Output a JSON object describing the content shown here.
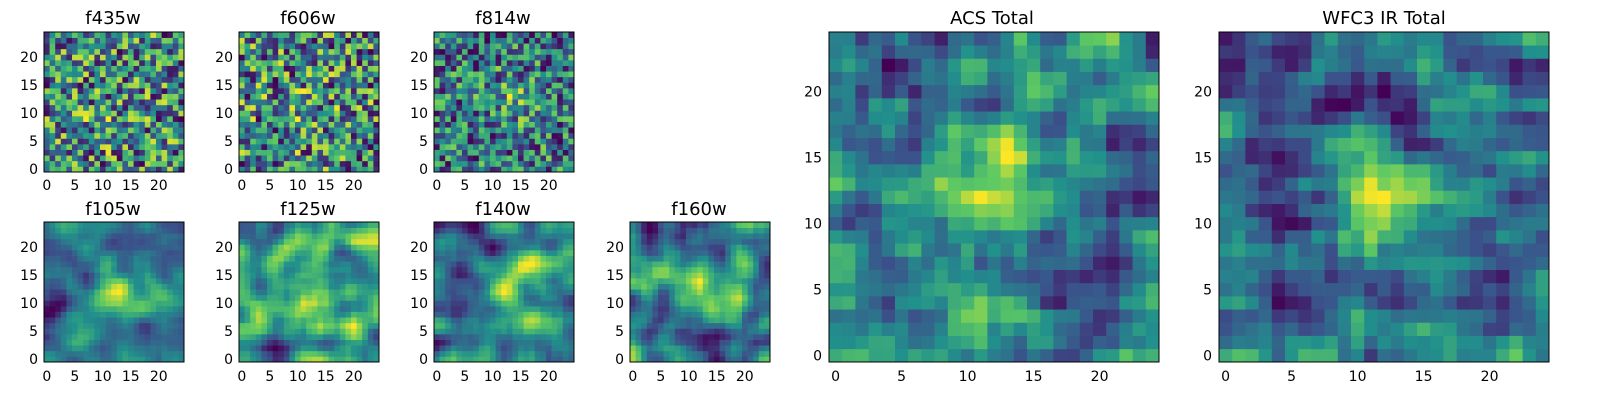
{
  "chart_data": [
    {
      "type": "heatmap",
      "title": "f435w",
      "grid_size": 25,
      "seed": 435,
      "smooth": 0,
      "blob": [
        10,
        8,
        0.1
      ],
      "xticks": [
        0,
        5,
        10,
        15,
        20
      ],
      "yticks": [
        0,
        5,
        10,
        15,
        20
      ],
      "xlim": [
        0,
        24
      ],
      "ylim": [
        0,
        24
      ]
    },
    {
      "type": "heatmap",
      "title": "f606w",
      "grid_size": 25,
      "seed": 606,
      "smooth": 0,
      "blob": [
        12,
        11,
        0.08
      ],
      "xticks": [
        0,
        5,
        10,
        15,
        20
      ],
      "yticks": [
        0,
        5,
        10,
        15,
        20
      ],
      "xlim": [
        0,
        24
      ],
      "ylim": [
        0,
        24
      ]
    },
    {
      "type": "heatmap",
      "title": "f814w",
      "grid_size": 25,
      "seed": 814,
      "smooth": 0,
      "blob": [
        13,
        12,
        0.25
      ],
      "xticks": [
        0,
        5,
        10,
        15,
        20
      ],
      "yticks": [
        0,
        5,
        10,
        15,
        20
      ],
      "xlim": [
        0,
        24
      ],
      "ylim": [
        0,
        24
      ]
    },
    {
      "type": "heatmap",
      "title": "f105w",
      "grid_size": 25,
      "seed": 105,
      "smooth": 2,
      "blob": [
        13,
        12,
        0.3
      ],
      "xticks": [
        0,
        5,
        10,
        15,
        20
      ],
      "yticks": [
        0,
        5,
        10,
        15,
        20
      ],
      "xlim": [
        0,
        24
      ],
      "ylim": [
        0,
        24
      ]
    },
    {
      "type": "heatmap",
      "title": "f125w",
      "grid_size": 25,
      "seed": 125,
      "smooth": 2,
      "blob": [
        12,
        11,
        0.2
      ],
      "xticks": [
        0,
        5,
        10,
        15,
        20
      ],
      "yticks": [
        0,
        5,
        10,
        15,
        20
      ],
      "xlim": [
        0,
        24
      ],
      "ylim": [
        0,
        24
      ]
    },
    {
      "type": "heatmap",
      "title": "f140w",
      "grid_size": 25,
      "seed": 140,
      "smooth": 2,
      "blob": [
        13,
        12,
        0.2
      ],
      "xticks": [
        0,
        5,
        10,
        15,
        20
      ],
      "yticks": [
        0,
        5,
        10,
        15,
        20
      ],
      "xlim": [
        0,
        24
      ],
      "ylim": [
        0,
        24
      ]
    },
    {
      "type": "heatmap",
      "title": "f160w",
      "grid_size": 25,
      "seed": 160,
      "smooth": 2,
      "blob": [
        12,
        12,
        0.3
      ],
      "xticks": [
        0,
        5,
        10,
        15,
        20
      ],
      "yticks": [
        0,
        5,
        10,
        15,
        20
      ],
      "xlim": [
        0,
        24
      ],
      "ylim": [
        0,
        24
      ]
    },
    {
      "type": "heatmap",
      "title": "ACS Total",
      "grid_size": 25,
      "seed": 777,
      "smooth": 1,
      "blob": [
        13,
        13,
        0.25
      ],
      "xticks": [
        0,
        5,
        10,
        15,
        20
      ],
      "yticks": [
        0,
        5,
        10,
        15,
        20
      ],
      "xlim": [
        0,
        24
      ],
      "ylim": [
        0,
        24
      ]
    },
    {
      "type": "heatmap",
      "title": "WFC3 IR Total",
      "grid_size": 25,
      "seed": 999,
      "smooth": 1,
      "blob": [
        12,
        12,
        0.45
      ],
      "xticks": [
        0,
        5,
        10,
        15,
        20
      ],
      "yticks": [
        0,
        5,
        10,
        15,
        20
      ],
      "xlim": [
        0,
        24
      ],
      "ylim": [
        0,
        24
      ]
    }
  ],
  "colormap": [
    "#440154",
    "#3b528b",
    "#21918c",
    "#5ec962",
    "#fde725"
  ]
}
